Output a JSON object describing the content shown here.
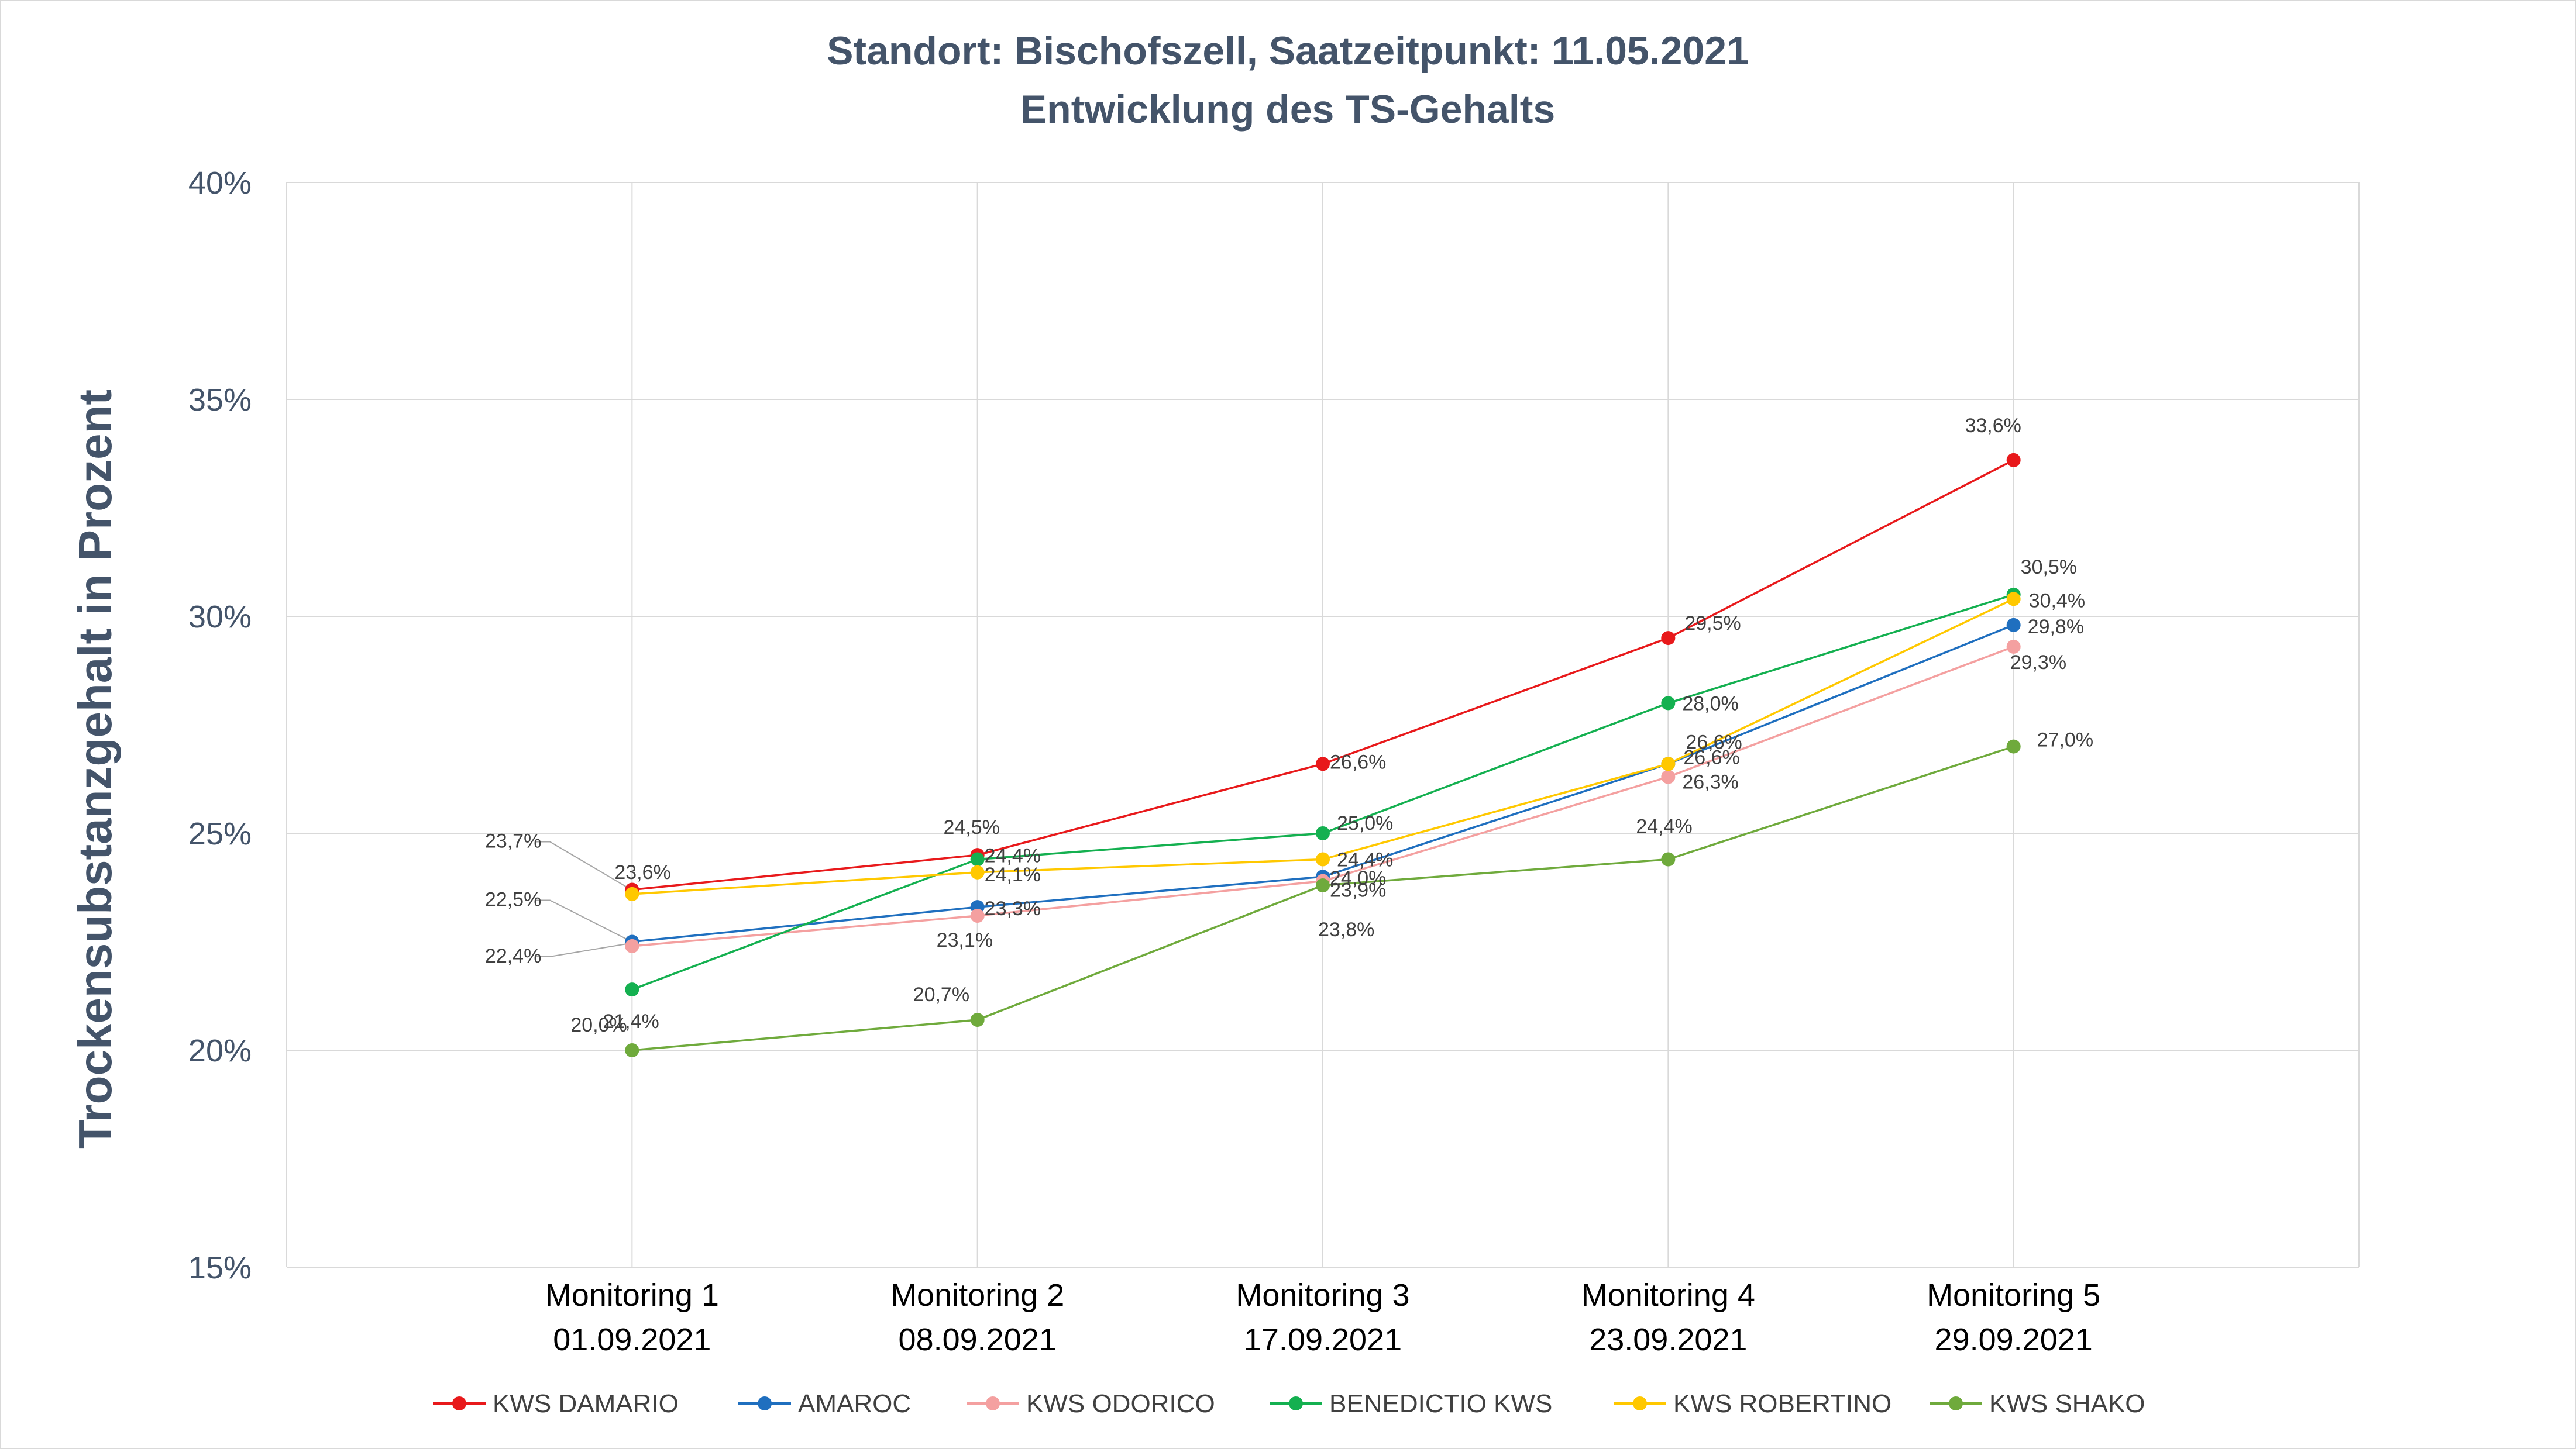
{
  "chart_data": {
    "type": "line",
    "title": "Standort: Bischofszell, Saatzeitpunkt: 11.05.2021",
    "subtitle": "Entwicklung des TS-Gehalts",
    "xlabel": "",
    "ylabel": "Trockensubstanzgehalt in Prozent",
    "categories": [
      {
        "line1": "Monitoring 1",
        "line2": "01.09.2021"
      },
      {
        "line1": "Monitoring 2",
        "line2": "08.09.2021"
      },
      {
        "line1": "Monitoring 3",
        "line2": "17.09.2021"
      },
      {
        "line1": "Monitoring 4",
        "line2": "23.09.2021"
      },
      {
        "line1": "Monitoring 5",
        "line2": "29.09.2021"
      }
    ],
    "ylim": [
      15,
      40
    ],
    "yticks": [
      "15%",
      "20%",
      "25%",
      "30%",
      "35%",
      "40%"
    ],
    "grid": true,
    "legend_position": "bottom",
    "series": [
      {
        "name": "KWS DAMARIO",
        "color": "#E8191B",
        "values": [
          23.7,
          24.5,
          26.6,
          29.5,
          33.6
        ],
        "labels": [
          "23,7%",
          "24,5%",
          "26,6%",
          "29,5%",
          "33,6%"
        ]
      },
      {
        "name": "AMAROC",
        "color": "#1F6FBF",
        "values": [
          22.5,
          23.3,
          24.0,
          26.6,
          29.8
        ],
        "labels": [
          "22,5%",
          "23,3%",
          "24,0%",
          "26,6%",
          "29,8%"
        ]
      },
      {
        "name": "KWS ODORICO",
        "color": "#F4A0A0",
        "values": [
          22.4,
          23.1,
          23.9,
          26.3,
          29.3
        ],
        "labels": [
          "22,4%",
          "23,1%",
          "23,9%",
          "26,3%",
          "29,3%"
        ]
      },
      {
        "name": "BENEDICTIO KWS",
        "color": "#14B050",
        "values": [
          21.4,
          24.4,
          25.0,
          28.0,
          30.5
        ],
        "labels": [
          "21,4%",
          "24,4%",
          "25,0%",
          "28,0%",
          "30,5%"
        ]
      },
      {
        "name": "KWS ROBERTINO",
        "color": "#FFC800",
        "values": [
          23.6,
          24.1,
          24.4,
          26.6,
          30.4
        ],
        "labels": [
          "23,6%",
          "24,1%",
          "24,4%",
          "26,6%",
          "30,4%"
        ]
      },
      {
        "name": "KWS SHAKO",
        "color": "#6FAA3C",
        "values": [
          20.0,
          20.7,
          23.8,
          24.4,
          27.0
        ],
        "labels": [
          "20,0%",
          "20,7%",
          "23,8%",
          "24,4%",
          "27,0%"
        ]
      }
    ]
  }
}
